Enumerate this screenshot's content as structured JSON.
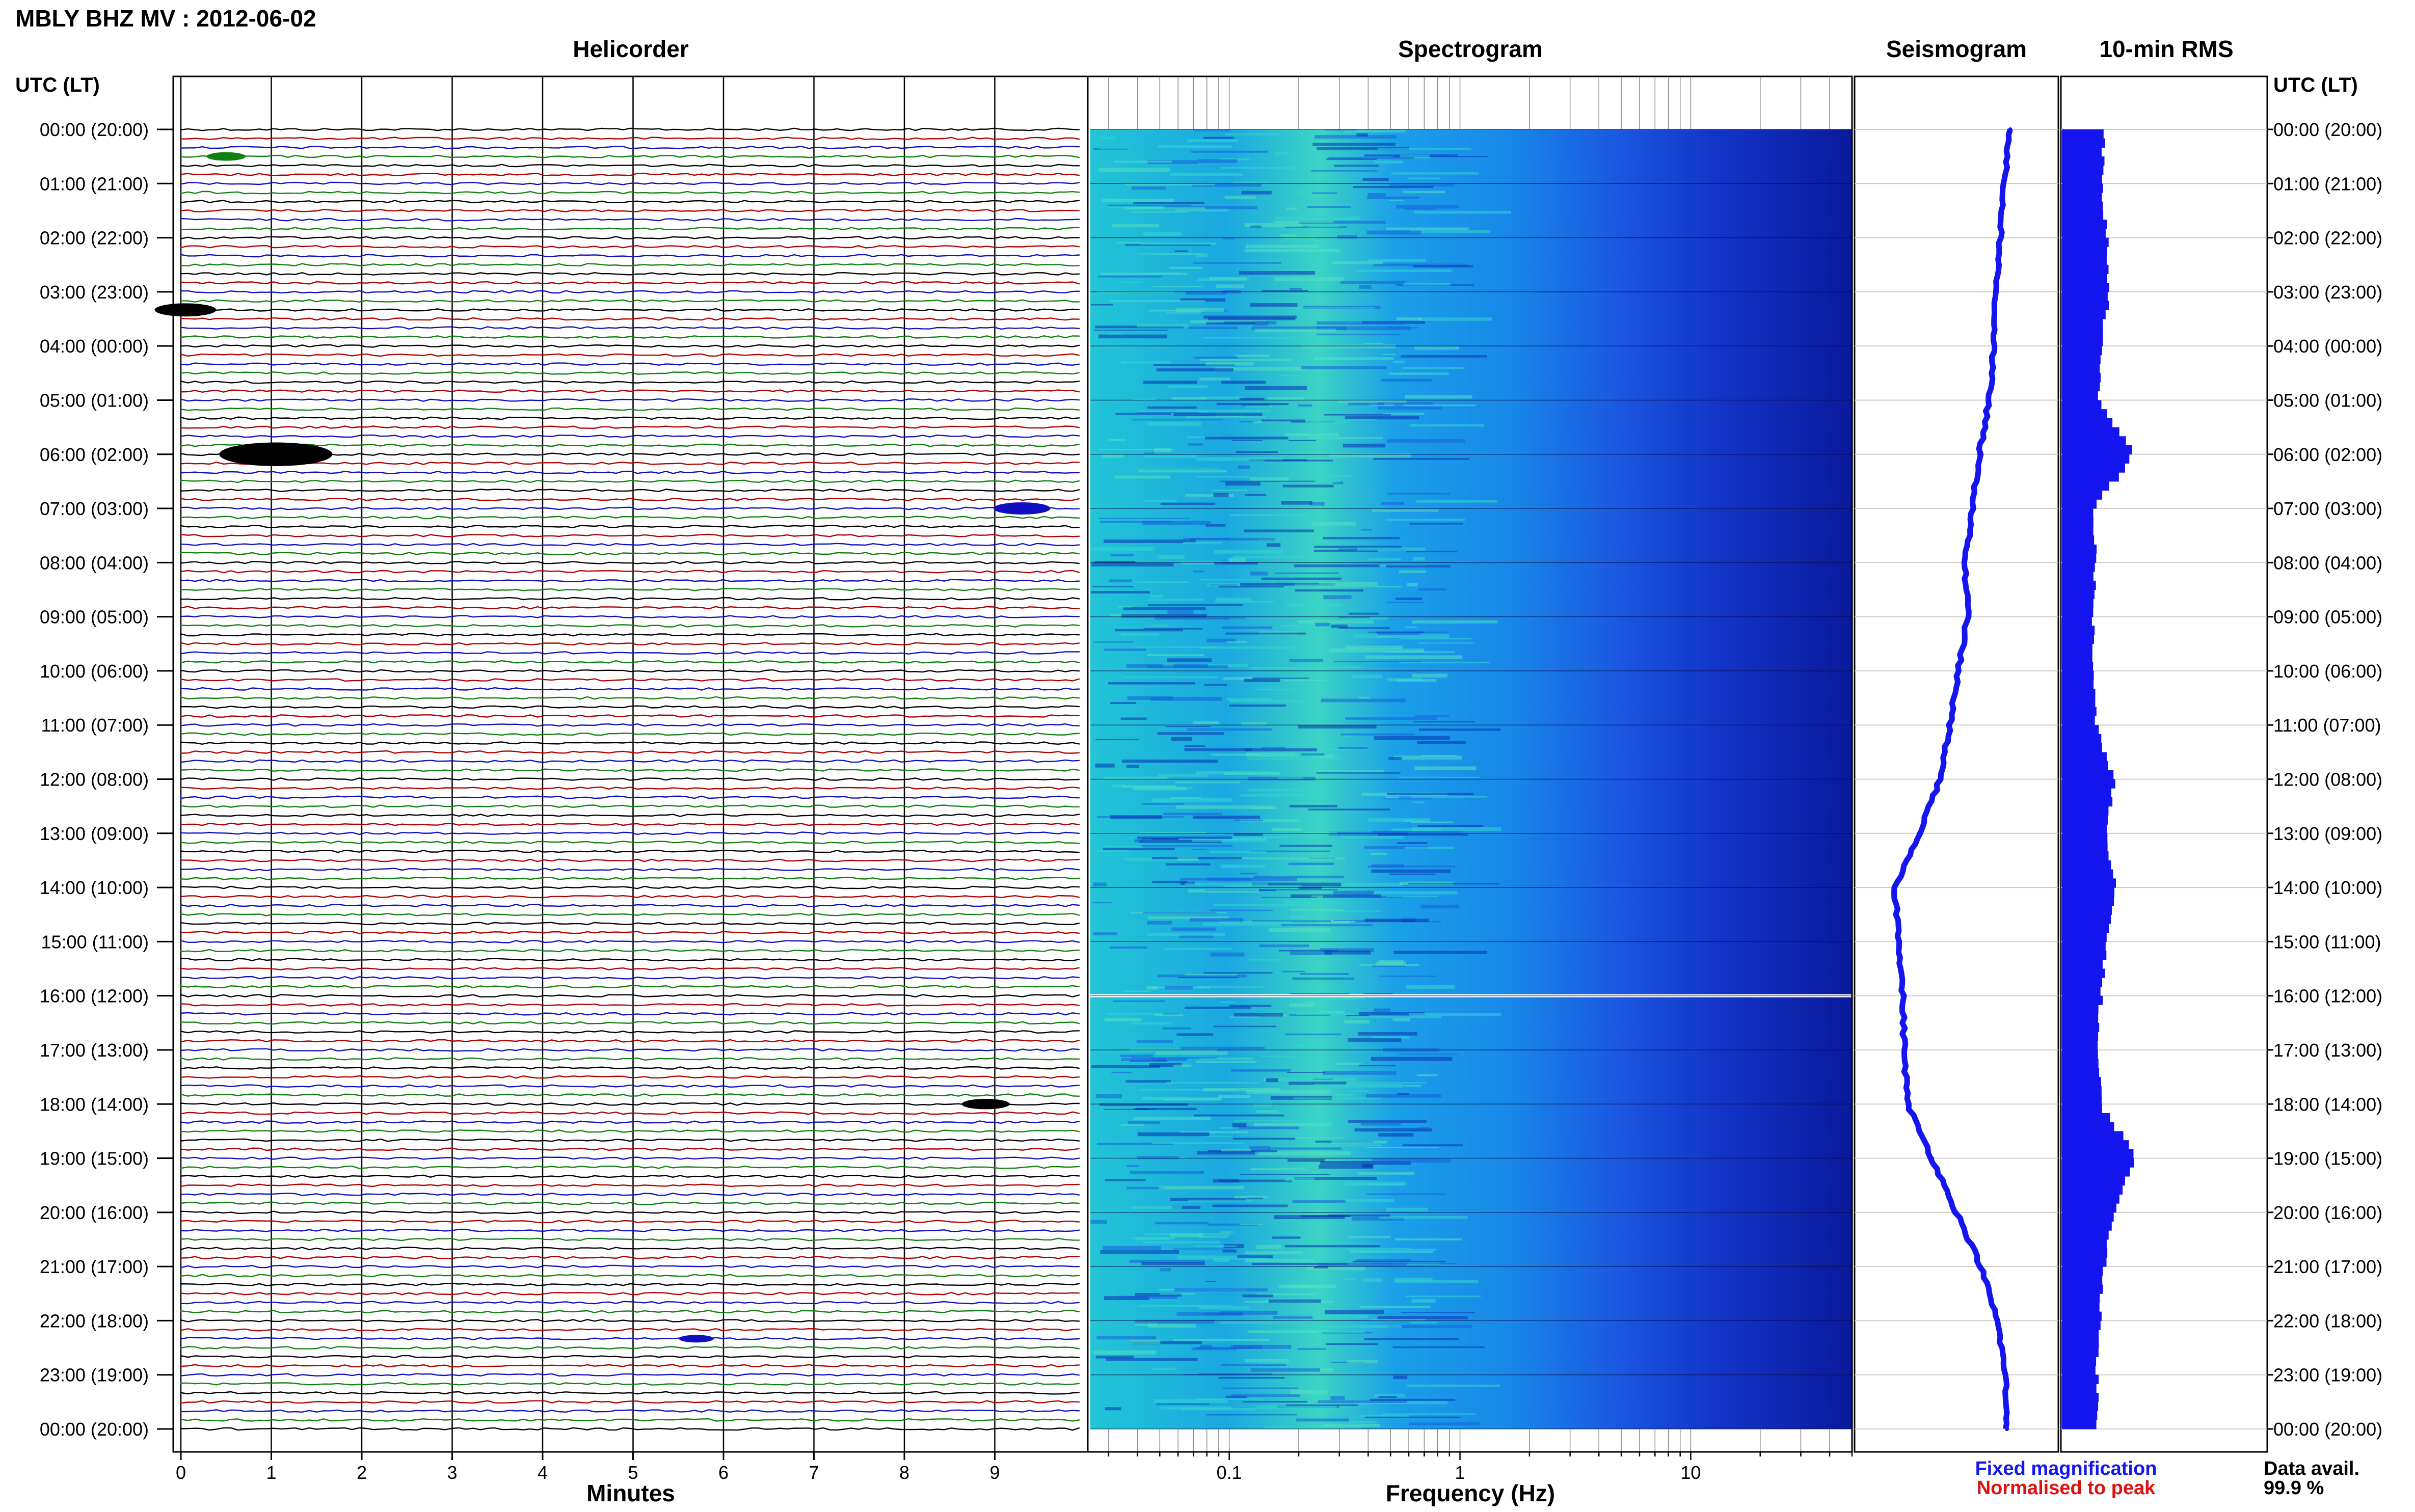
{
  "header": {
    "station_title": "MBLY BHZ MV : 2012-06-02"
  },
  "panels": {
    "helicorder": "Helicorder",
    "spectrogram": "Spectrogram",
    "seismogram": "Seismogram",
    "rms": "10-min RMS"
  },
  "time_axis": {
    "title_left": "UTC (LT)",
    "title_right": "UTC (LT)",
    "labels": [
      "00:00 (20:00)",
      "01:00 (21:00)",
      "02:00 (22:00)",
      "03:00 (23:00)",
      "04:00 (00:00)",
      "05:00 (01:00)",
      "06:00 (02:00)",
      "07:00 (03:00)",
      "08:00 (04:00)",
      "09:00 (05:00)",
      "10:00 (06:00)",
      "11:00 (07:00)",
      "12:00 (08:00)",
      "13:00 (09:00)",
      "14:00 (10:00)",
      "15:00 (11:00)",
      "16:00 (12:00)",
      "17:00 (13:00)",
      "18:00 (14:00)",
      "19:00 (15:00)",
      "20:00 (16:00)",
      "21:00 (17:00)",
      "22:00 (18:00)",
      "23:00 (19:00)",
      "00:00 (20:00)"
    ]
  },
  "footer": {
    "minutes_label": "Minutes",
    "frequency_label": "Frequency (Hz)",
    "legend_fixed": "Fixed magnification",
    "legend_normalised": "Normalised to peak",
    "data_avail_label": "Data avail.",
    "data_avail_value": "99.9 %"
  },
  "colors": {
    "trace_black": "#000000",
    "trace_red": "#b00000",
    "trace_blue": "#1010c0",
    "trace_green": "#108010",
    "fixed_magnification": "#1515f0",
    "normalised_to_peak": "#e01010"
  },
  "chart_data": [
    {
      "type": "line",
      "name": "helicorder",
      "x_ticks": [
        0,
        1,
        2,
        3,
        4,
        5,
        6,
        7,
        8,
        9
      ],
      "xlim": [
        0,
        10
      ],
      "lines_per_hour": 6,
      "trace_color_cycle": [
        "#000000",
        "#b00000",
        "#1010c0",
        "#108010"
      ],
      "events": [
        {
          "hour": 0.5,
          "minute": 0.5,
          "amplitude": 1.2
        },
        {
          "hour": 3.3,
          "minute": 0.05,
          "amplitude": 2.2
        },
        {
          "hour": 6.0,
          "minute": 1.05,
          "amplitude": 4.5
        },
        {
          "hour": 6.95,
          "minute": 9.3,
          "amplitude": 2.0
        },
        {
          "hour": 18.0,
          "minute": 8.9,
          "amplitude": 1.6
        },
        {
          "hour": 22.3,
          "minute": 5.7,
          "amplitude": 1.0
        }
      ]
    },
    {
      "type": "heatmap",
      "name": "spectrogram",
      "x_scale": "log",
      "x_ticks": [
        0.1,
        1,
        10
      ],
      "xlim": [
        0.025,
        50
      ],
      "gap_hour": 16.0
    },
    {
      "type": "line",
      "name": "seismogram",
      "x_range": [
        0,
        1
      ],
      "hours": [
        0,
        1,
        2,
        3,
        4,
        5,
        6,
        7,
        8,
        9,
        10,
        11,
        12,
        13,
        14,
        15,
        16,
        17,
        18,
        19,
        20,
        21,
        22,
        23,
        24
      ],
      "x": [
        0.83,
        0.79,
        0.77,
        0.74,
        0.73,
        0.7,
        0.64,
        0.6,
        0.55,
        0.57,
        0.51,
        0.46,
        0.4,
        0.27,
        0.12,
        0.15,
        0.17,
        0.18,
        0.2,
        0.35,
        0.5,
        0.65,
        0.75,
        0.8,
        0.81
      ]
    },
    {
      "type": "bar",
      "name": "10-min RMS",
      "orientation": "horizontal",
      "xlim": [
        0,
        1
      ],
      "hours": [
        0,
        1,
        2,
        3,
        4,
        5,
        6,
        7,
        8,
        9,
        10,
        11,
        12,
        13,
        14,
        15,
        16,
        17,
        18,
        19,
        20,
        21,
        22,
        23,
        24
      ],
      "values": [
        0.22,
        0.2,
        0.23,
        0.24,
        0.2,
        0.18,
        0.37,
        0.16,
        0.17,
        0.16,
        0.16,
        0.17,
        0.27,
        0.22,
        0.27,
        0.23,
        0.2,
        0.18,
        0.2,
        0.38,
        0.26,
        0.22,
        0.19,
        0.18,
        0.18
      ]
    }
  ]
}
